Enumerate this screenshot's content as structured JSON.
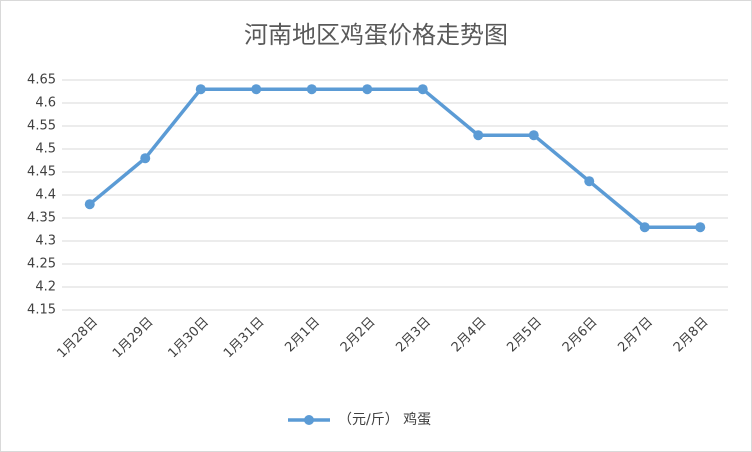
{
  "chart_data": {
    "type": "line",
    "title": "河南地区鸡蛋价格走势图",
    "categories": [
      "1月28日",
      "1月29日",
      "1月30日",
      "1月31日",
      "2月1日",
      "2月2日",
      "2月3日",
      "2月4日",
      "2月5日",
      "2月6日",
      "2月7日",
      "2月8日"
    ],
    "series": [
      {
        "name": "（元/斤） 鸡蛋",
        "color": "#5b9bd5",
        "values": [
          4.38,
          4.48,
          4.63,
          4.63,
          4.63,
          4.63,
          4.63,
          4.53,
          4.53,
          4.43,
          4.33,
          4.33
        ]
      }
    ],
    "ylim": [
      4.15,
      4.65
    ],
    "yticks": [
      4.15,
      4.2,
      4.25,
      4.3,
      4.35,
      4.4,
      4.45,
      4.5,
      4.55,
      4.6,
      4.65
    ],
    "grid": true,
    "legend": "bottom"
  }
}
